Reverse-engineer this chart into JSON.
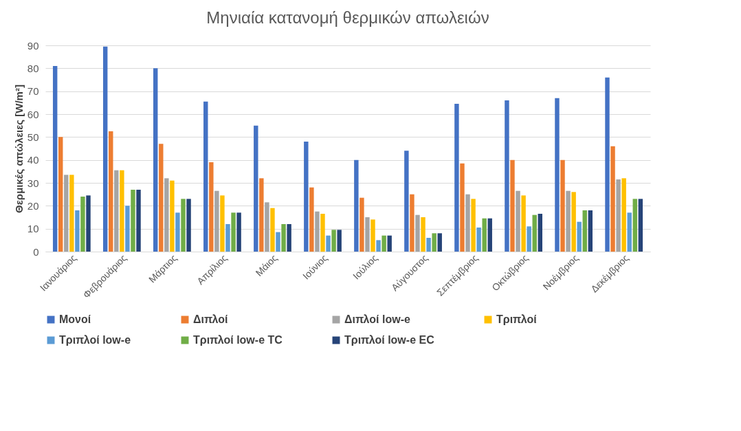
{
  "chart_data": {
    "type": "bar",
    "title": "Μηνιαία κατανομή θερμικών απωλειών",
    "ylabel": "Θερμικές απώλειες [W/m²]",
    "categories": [
      "Ιανουάριος",
      "Φεβρουάριος",
      "Μάρτιος",
      "Απρίλιος",
      "Μάιος",
      "Ιούνιος",
      "Ιούλιος",
      "Αύγουστος",
      "Σεπτέμβριος",
      "Οκτώβριος",
      "Νοέμβριος",
      "Δεκέμβριος"
    ],
    "series": [
      {
        "name": "Μονοί",
        "color": "#4472c4",
        "values": [
          81,
          89.5,
          80,
          65.5,
          55,
          48,
          40,
          44,
          64.5,
          66,
          67,
          76
        ]
      },
      {
        "name": "Διπλοί",
        "color": "#ed7d31",
        "values": [
          50,
          52.5,
          47,
          39,
          32,
          28,
          23.5,
          25,
          38.5,
          40,
          40,
          46
        ]
      },
      {
        "name": "Διπλοί low-e",
        "color": "#a5a5a5",
        "values": [
          33.5,
          35.5,
          32,
          26.5,
          21.5,
          17.5,
          15,
          16,
          25,
          26.5,
          26.5,
          31.5
        ]
      },
      {
        "name": "Τριπλοί",
        "color": "#ffc000",
        "values": [
          33.5,
          35.5,
          31,
          24.5,
          19,
          16.5,
          14,
          15,
          23,
          24.5,
          26,
          32
        ]
      },
      {
        "name": "Τριπλοί low-e",
        "color": "#5b9bd5",
        "values": [
          18,
          20,
          17,
          12,
          8.5,
          7,
          5,
          6,
          10.5,
          11,
          13,
          17
        ]
      },
      {
        "name": "Τριπλοί low-e TC",
        "color": "#70ad47",
        "values": [
          24,
          27,
          23,
          17,
          12,
          9.5,
          7,
          8,
          14.5,
          16,
          18,
          23
        ]
      },
      {
        "name": "Τριπλοί low-e EC",
        "color": "#264478",
        "values": [
          24.5,
          27,
          23,
          17,
          12,
          9.5,
          7,
          8,
          14.5,
          16.5,
          18,
          23
        ]
      }
    ],
    "ylim": [
      0,
      90
    ],
    "yticks": [
      0,
      10,
      20,
      30,
      40,
      50,
      60,
      70,
      80,
      90
    ],
    "grid": "y",
    "legend": "bottom"
  }
}
